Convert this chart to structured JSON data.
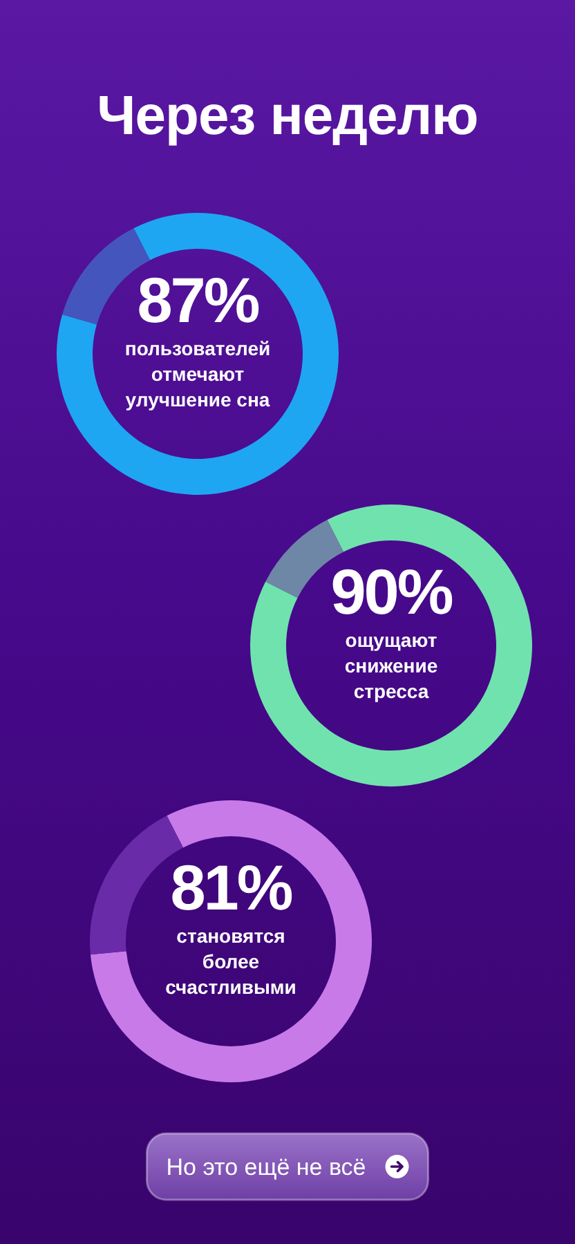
{
  "chart_data": [
    {
      "type": "donut",
      "title": "Через неделю",
      "categories": [
        null,
        null
      ],
      "values": [
        87,
        13
      ],
      "colors": [
        "#1ea6f2",
        "#4456be"
      ],
      "value_labels": [
        "87%",
        null
      ],
      "annotations": [
        "пользователей отмечают улучшение сна"
      ]
    },
    {
      "type": "donut",
      "categories": [
        null,
        null
      ],
      "values": [
        90,
        10
      ],
      "colors": [
        "#70e2ae",
        "#6f87a6"
      ],
      "value_labels": [
        "90%",
        null
      ],
      "annotations": [
        "ощущают снижение стресса"
      ]
    },
    {
      "type": "donut",
      "categories": [
        null,
        null
      ],
      "values": [
        81,
        19
      ],
      "colors": [
        "#c87ae9",
        "#6a2ba8"
      ],
      "value_labels": [
        "81%",
        null
      ],
      "annotations": [
        "становятся более счастливыми"
      ]
    },
    {
      "type": "other",
      "annotations": [
        "Но это ещё не всё"
      ]
    }
  ]
}
